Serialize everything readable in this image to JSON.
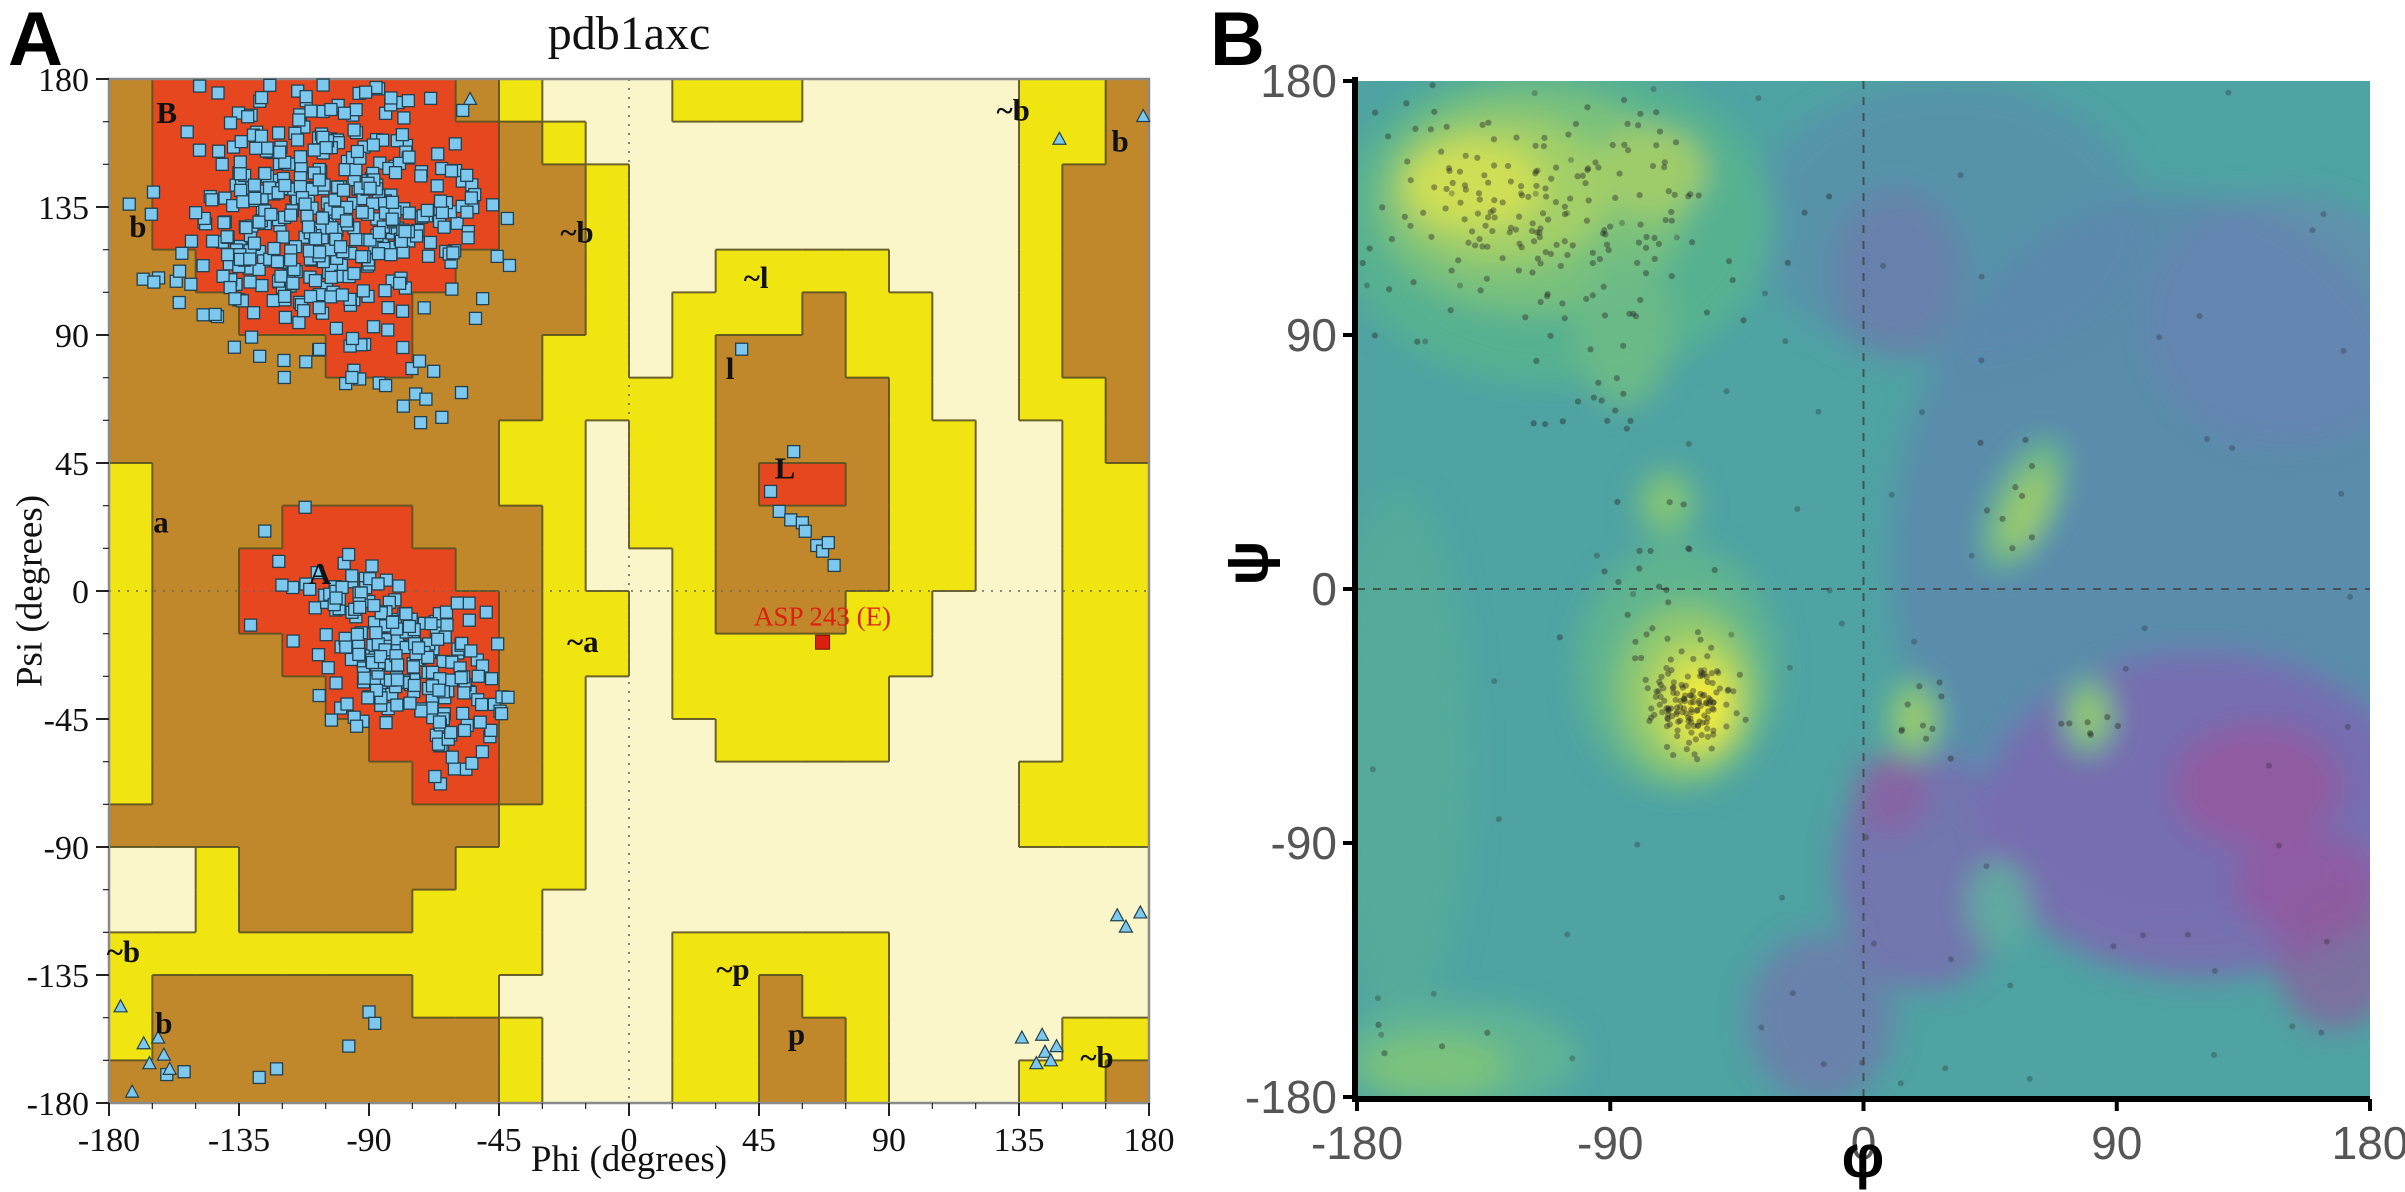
{
  "panels": {
    "a_letter": "A",
    "b_letter": "B"
  },
  "chart_data": [
    {
      "type": "scatter",
      "panel": "A",
      "title": "pdb1axc",
      "xlabel": "Phi (degrees)",
      "ylabel": "Psi (degrees)",
      "xlim": [
        -180,
        180
      ],
      "ylim": [
        -180,
        180
      ],
      "x_ticks": [
        -180,
        -135,
        -90,
        -45,
        0,
        45,
        90,
        135,
        180
      ],
      "y_ticks": [
        -180,
        -135,
        -90,
        -45,
        0,
        45,
        90,
        135,
        180
      ],
      "grid_zero_lines": true,
      "colors": {
        "core": "#e6471f",
        "allowed": "#c1872b",
        "generous": "#f1e511",
        "disallowed": "#faf6c9",
        "boundary": "#5b5322",
        "marker_fill": "#7cc8ee",
        "marker_edge": "#22404f",
        "highlight_red": "#dd1f10",
        "frame": "#8a8a8a"
      },
      "region_codes": {
        "0": "disallowed",
        "1": "generously-allowed",
        "2": "additionally-allowed",
        "3": "most-favoured"
      },
      "region_grid_deg": 15,
      "region_rows": [
        "233333332100011100000112",
        "233333333210000000000112",
        "233333333221000000000122",
        "233333333221000000000122",
        "223333332221001111000122",
        "222333322221011121100122",
        "222223322211012221100122",
        "222222222211112222100112",
        "222222222110112222110012",
        "122222222110112332110011",
        "122233322210112222110011",
        "122333332210012222110011",
        "122333333211012221100011",
        "122233333211011111100011",
        "122223333210011111000011",
        "122222333210001111000011",
        "122222233210000000000111",
        "222222222110000000000111",
        "001222221110000000000000",
        "001222211100000000000000",
        "111111111100011111000000",
        "122222211000011211000000",
        "122222222100011221000011",
        "222222222100011221000112"
      ],
      "region_labels": [
        {
          "text": "B",
          "phi": -160,
          "psi": 168
        },
        {
          "text": "b",
          "phi": -170,
          "psi": 128
        },
        {
          "text": "~b",
          "phi": -18,
          "psi": 126
        },
        {
          "text": "~l",
          "phi": 44,
          "psi": 110
        },
        {
          "text": "l",
          "phi": 35,
          "psi": 78
        },
        {
          "text": "L",
          "phi": 54,
          "psi": 43
        },
        {
          "text": "a",
          "phi": -162,
          "psi": 24
        },
        {
          "text": "A",
          "phi": -107,
          "psi": 6
        },
        {
          "text": "~a",
          "phi": -16,
          "psi": -18
        },
        {
          "text": "~p",
          "phi": 36,
          "psi": -133
        },
        {
          "text": "p",
          "phi": 58,
          "psi": -156
        },
        {
          "text": "~b",
          "phi": -175,
          "psi": -127
        },
        {
          "text": "b",
          "phi": -161,
          "psi": -152
        },
        {
          "text": "~b",
          "phi": 162,
          "psi": -164
        },
        {
          "text": "~b",
          "phi": 133,
          "psi": 169
        },
        {
          "text": "b",
          "phi": 170,
          "psi": 158
        }
      ],
      "highlight": {
        "text": "ASP 243 (E)",
        "phi": 67,
        "psi": -18,
        "label_psi": -9
      },
      "clusters": [
        {
          "name": "beta-sheet-cluster",
          "marker": "square",
          "n": 430,
          "cx": -107,
          "cy": 134,
          "sx": 27,
          "sy": 22,
          "slope": 0,
          "clamp": [
            -177,
            -38,
            72,
            178
          ]
        },
        {
          "name": "beta-tail-cluster",
          "marker": "square",
          "n": 20,
          "cx": -88,
          "cy": 74,
          "sx": 22,
          "sy": 8,
          "slope": 0,
          "clamp": [
            -150,
            -40,
            58,
            92
          ]
        },
        {
          "name": "alpha-helix-cluster",
          "marker": "square",
          "n": 240,
          "cx": -78,
          "cy": -24,
          "sx": 19,
          "sy": 16,
          "slope": -0.55,
          "clamp": [
            -150,
            -40,
            -68,
            32
          ]
        }
      ],
      "points_square": [
        [
          39,
          85
        ],
        [
          49,
          35
        ],
        [
          52,
          28
        ],
        [
          56,
          25
        ],
        [
          60,
          24
        ],
        [
          61,
          21
        ],
        [
          65,
          16
        ],
        [
          67,
          14
        ],
        [
          69,
          17
        ],
        [
          71,
          9
        ],
        [
          57,
          49
        ],
        [
          -173,
          136
        ],
        [
          -150,
          133
        ],
        [
          -131,
          -12
        ],
        [
          -160,
          -170
        ],
        [
          -154,
          -169
        ],
        [
          -128,
          -171
        ],
        [
          -122,
          -168
        ],
        [
          -90,
          -148
        ],
        [
          -97,
          -160
        ],
        [
          -88,
          -152
        ]
      ],
      "points_triangle": [
        [
          -176,
          -146
        ],
        [
          -163,
          -157
        ],
        [
          -161,
          -163
        ],
        [
          -166,
          -166
        ],
        [
          -159,
          -168
        ],
        [
          -172,
          -176
        ],
        [
          -168,
          -159
        ],
        [
          136,
          -157
        ],
        [
          143,
          -156
        ],
        [
          144,
          -162
        ],
        [
          146,
          -165
        ],
        [
          141,
          -166
        ],
        [
          148,
          -160
        ],
        [
          169,
          -114
        ],
        [
          177,
          -113
        ],
        [
          172,
          -118
        ],
        [
          149,
          159
        ],
        [
          178,
          167
        ],
        [
          -55,
          173
        ]
      ]
    },
    {
      "type": "heatmap",
      "panel": "B",
      "xlabel": "φ",
      "ylabel": "ψ",
      "xlim": [
        -180,
        180
      ],
      "ylim": [
        -180,
        180
      ],
      "x_ticks": [
        -180,
        -90,
        0,
        90,
        180
      ],
      "y_ticks": [
        -180,
        -90,
        0,
        90,
        180
      ],
      "grid_zero_lines": true,
      "base_color": "#4fa3a3",
      "tick_color": "#555555",
      "density_peaks": [
        {
          "name": "beta-region-peak",
          "phi": -115,
          "psi": 137,
          "level": "high"
        },
        {
          "name": "alpha-region-peak",
          "phi": -60,
          "psi": -40,
          "level": "max"
        },
        {
          "name": "left-alpha-peak",
          "phi": 57,
          "psi": 30,
          "level": "mid"
        },
        {
          "name": "peak-phi18",
          "phi": 18,
          "psi": -45,
          "level": "mid"
        },
        {
          "name": "peak-phi80",
          "phi": 80,
          "psi": -45,
          "level": "mid"
        },
        {
          "name": "low-density-purple",
          "phi": 120,
          "psi": -80,
          "level": "low"
        }
      ],
      "blobs": [
        [
          "#5d87ae",
          110,
          10,
          100,
          130,
          0,
          0.8
        ],
        [
          "#5d87ae",
          30,
          130,
          70,
          50,
          0,
          0.55
        ],
        [
          "#6f80b5",
          150,
          95,
          50,
          45,
          0,
          0.5
        ],
        [
          "#7a6cb0",
          120,
          -80,
          78,
          58,
          0,
          0.9
        ],
        [
          "#95589f",
          140,
          -70,
          30,
          22,
          0,
          0.85
        ],
        [
          "#95589f",
          158,
          -105,
          26,
          18,
          0,
          0.8
        ],
        [
          "#8f5d9e",
          168,
          -130,
          22,
          26,
          0,
          0.7
        ],
        [
          "#7a6cb0",
          22,
          -100,
          32,
          42,
          0,
          0.8
        ],
        [
          "#95589f",
          10,
          -72,
          13,
          15,
          0,
          0.6
        ],
        [
          "#7a6cb0",
          12,
          112,
          24,
          30,
          0,
          0.45
        ],
        [
          "#7a6cb0",
          -15,
          -152,
          26,
          30,
          0,
          0.6
        ],
        [
          "#54ab9a",
          -165,
          -60,
          26,
          95,
          0,
          0.9
        ],
        [
          "#57b191",
          -110,
          130,
          78,
          58,
          0,
          1
        ],
        [
          "#79c17c",
          -118,
          138,
          56,
          40,
          0,
          1
        ],
        [
          "#a3cf68",
          -128,
          141,
          38,
          26,
          0,
          1
        ],
        [
          "#cfdf55",
          -138,
          143,
          24,
          15,
          0,
          1
        ],
        [
          "#9fcc6b",
          -76,
          148,
          20,
          16,
          0,
          1
        ],
        [
          "#6dbb86",
          -85,
          92,
          17,
          28,
          0,
          0.9
        ],
        [
          "#6dbb86",
          -70,
          30,
          11,
          13,
          0,
          0.9
        ],
        [
          "#8cc76f",
          -70,
          31,
          6,
          7,
          0,
          1
        ],
        [
          "#5fb48f",
          -66,
          -28,
          36,
          44,
          0,
          1
        ],
        [
          "#8cc76f",
          -63,
          -36,
          25,
          31,
          0,
          1
        ],
        [
          "#bcd95c",
          -60,
          -39,
          16,
          21,
          0,
          1
        ],
        [
          "#e8e63c",
          -58,
          -41,
          10,
          14,
          0,
          1
        ],
        [
          "#f6ef35",
          -57,
          -42,
          6,
          9,
          0,
          1
        ],
        [
          "#6dbb86",
          18,
          -46,
          10,
          15,
          0,
          0.95
        ],
        [
          "#9fcc6b",
          18,
          -46,
          6,
          9,
          0,
          1
        ],
        [
          "#6dbb86",
          80,
          -45,
          9,
          14,
          0,
          0.95
        ],
        [
          "#9fcc6b",
          80,
          -45,
          5,
          8,
          0,
          1
        ],
        [
          "#6dbb86",
          57,
          30,
          11,
          25,
          25,
          0.95
        ],
        [
          "#9fcc6b",
          58,
          28,
          6,
          16,
          25,
          1
        ],
        [
          "#5fae9d",
          48,
          -112,
          11,
          16,
          0,
          0.9
        ],
        [
          "#5fb494",
          -145,
          -166,
          44,
          20,
          0,
          0.95
        ],
        [
          "#7cc27c",
          -152,
          -169,
          26,
          11,
          0,
          1
        ]
      ],
      "dot_clusters": [
        [
          -112,
          135,
          33,
          24,
          210
        ],
        [
          -62,
          -40,
          7,
          9,
          140
        ],
        [
          -72,
          12,
          10,
          22,
          22
        ],
        [
          -95,
          70,
          12,
          12,
          12
        ],
        [
          18,
          -45,
          6,
          9,
          10
        ],
        [
          80,
          -45,
          5,
          8,
          7
        ],
        [
          57,
          28,
          6,
          13,
          9
        ],
        [
          -150,
          -165,
          18,
          8,
          6
        ]
      ],
      "dots_uniform": 80
    }
  ]
}
